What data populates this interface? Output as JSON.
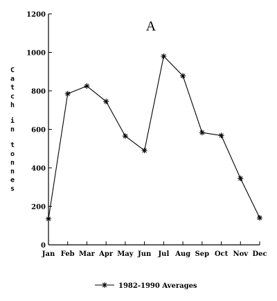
{
  "chart_data": {
    "type": "line",
    "panel_label": "A",
    "ylabel": "Catch in tonnes",
    "xlabel": "",
    "categories": [
      "Jan",
      "Feb",
      "Mar",
      "Apr",
      "May",
      "Jun",
      "Jul",
      "Aug",
      "Sep",
      "Oct",
      "Nov",
      "Dec"
    ],
    "ylim": [
      0,
      1200
    ],
    "yticks": [
      0,
      200,
      400,
      600,
      800,
      1000,
      1200
    ],
    "series": [
      {
        "name": "1982-1990 Averages",
        "values": [
          135,
          785,
          825,
          745,
          565,
          490,
          980,
          878,
          583,
          568,
          345,
          140
        ]
      }
    ],
    "legend_position": "bottom-center",
    "grid": false
  }
}
